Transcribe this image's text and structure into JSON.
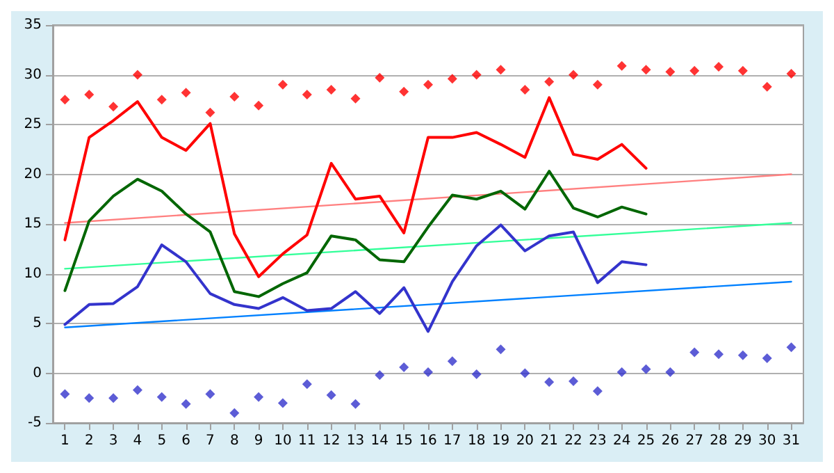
{
  "chart_data": {
    "type": "line",
    "x": [
      1,
      2,
      3,
      4,
      5,
      6,
      7,
      8,
      9,
      10,
      11,
      12,
      13,
      14,
      15,
      16,
      17,
      18,
      19,
      20,
      21,
      22,
      23,
      24,
      25,
      26,
      27,
      28,
      29,
      30,
      31
    ],
    "xlim": [
      0.5,
      31.5
    ],
    "xticks": [
      1,
      2,
      3,
      4,
      5,
      6,
      7,
      8,
      9,
      10,
      11,
      12,
      13,
      14,
      15,
      16,
      17,
      18,
      19,
      20,
      21,
      22,
      23,
      24,
      25,
      26,
      27,
      28,
      29,
      30,
      31
    ],
    "ylim": [
      -5,
      35
    ],
    "yticks": [
      -5,
      0,
      5,
      10,
      15,
      20,
      25,
      30,
      35
    ],
    "grid": "y",
    "marker": "none",
    "line_style": "solid",
    "series": [
      {
        "type": "scatter",
        "marker": "diamond",
        "color": "#ff0000",
        "values": [
          27.5,
          28,
          26.8,
          30,
          27.5,
          28.2,
          26.2,
          27.8,
          26.9,
          29,
          28,
          28.5,
          27.6,
          29.7,
          28.3,
          29,
          29.6,
          30,
          30.5,
          28.5,
          29.3,
          30,
          29,
          30.9,
          30.5,
          30.3,
          30.4,
          30.8,
          30.4,
          28.8,
          30.1
        ]
      },
      {
        "type": "scatter",
        "marker": "diamond",
        "color": "#3333cc",
        "values": [
          -2.1,
          -2.5,
          -2.5,
          -1.7,
          -2.4,
          -3.1,
          -2.1,
          -4,
          -2.4,
          -3,
          -1.1,
          -2.2,
          -3.1,
          -0.2,
          0.6,
          0.1,
          1.2,
          -0.1,
          2.4,
          0,
          -0.9,
          -0.8,
          -1.8,
          0.1,
          0.4,
          0.1,
          2.1,
          1.9,
          1.8,
          1.5,
          2.6
        ]
      },
      {
        "color": "#ff8080",
        "values": [
          15.1,
          null,
          null,
          null,
          null,
          null,
          null,
          null,
          null,
          null,
          null,
          null,
          null,
          null,
          null,
          null,
          null,
          null,
          null,
          null,
          null,
          null,
          null,
          null,
          null,
          null,
          null,
          null,
          null,
          null,
          20.0
        ]
      },
      {
        "color": "#33ff99",
        "values": [
          10.5,
          null,
          null,
          null,
          null,
          null,
          null,
          null,
          null,
          null,
          null,
          null,
          null,
          null,
          null,
          null,
          null,
          null,
          null,
          null,
          null,
          null,
          null,
          null,
          null,
          null,
          null,
          null,
          null,
          null,
          15.1
        ]
      },
      {
        "color": "#0080ff",
        "values": [
          4.6,
          null,
          null,
          null,
          null,
          null,
          null,
          null,
          null,
          null,
          null,
          null,
          null,
          null,
          null,
          null,
          null,
          null,
          null,
          null,
          null,
          null,
          null,
          null,
          null,
          null,
          null,
          null,
          null,
          null,
          9.2
        ]
      },
      {
        "color": "#ff0000",
        "values": [
          13.4,
          23.7,
          25.4,
          27.3,
          23.7,
          22.4,
          25.1,
          14,
          9.7,
          12,
          13.9,
          21.1,
          17.5,
          17.8,
          14.1,
          23.7,
          23.7,
          24.2,
          23,
          21.7,
          27.7,
          22,
          21.5,
          23,
          20.6,
          null,
          null,
          null,
          null,
          null,
          null
        ]
      },
      {
        "color": "#006600",
        "values": [
          8.3,
          15.3,
          17.8,
          19.5,
          18.3,
          16,
          14.2,
          8.2,
          7.7,
          9,
          10.1,
          13.8,
          13.4,
          11.4,
          11.2,
          14.7,
          17.9,
          17.5,
          18.3,
          16.5,
          20.3,
          16.6,
          15.7,
          16.7,
          16,
          null,
          null,
          null,
          null,
          null,
          null
        ]
      },
      {
        "color": "#3333cc",
        "values": [
          4.9,
          6.9,
          7,
          8.7,
          12.9,
          11.2,
          8,
          6.9,
          6.5,
          7.6,
          6.3,
          6.5,
          8.2,
          6,
          8.6,
          4.2,
          9.2,
          12.8,
          14.9,
          12.3,
          13.8,
          14.2,
          9.1,
          11.2,
          10.9,
          null,
          null,
          null,
          null,
          null,
          null
        ]
      }
    ]
  }
}
